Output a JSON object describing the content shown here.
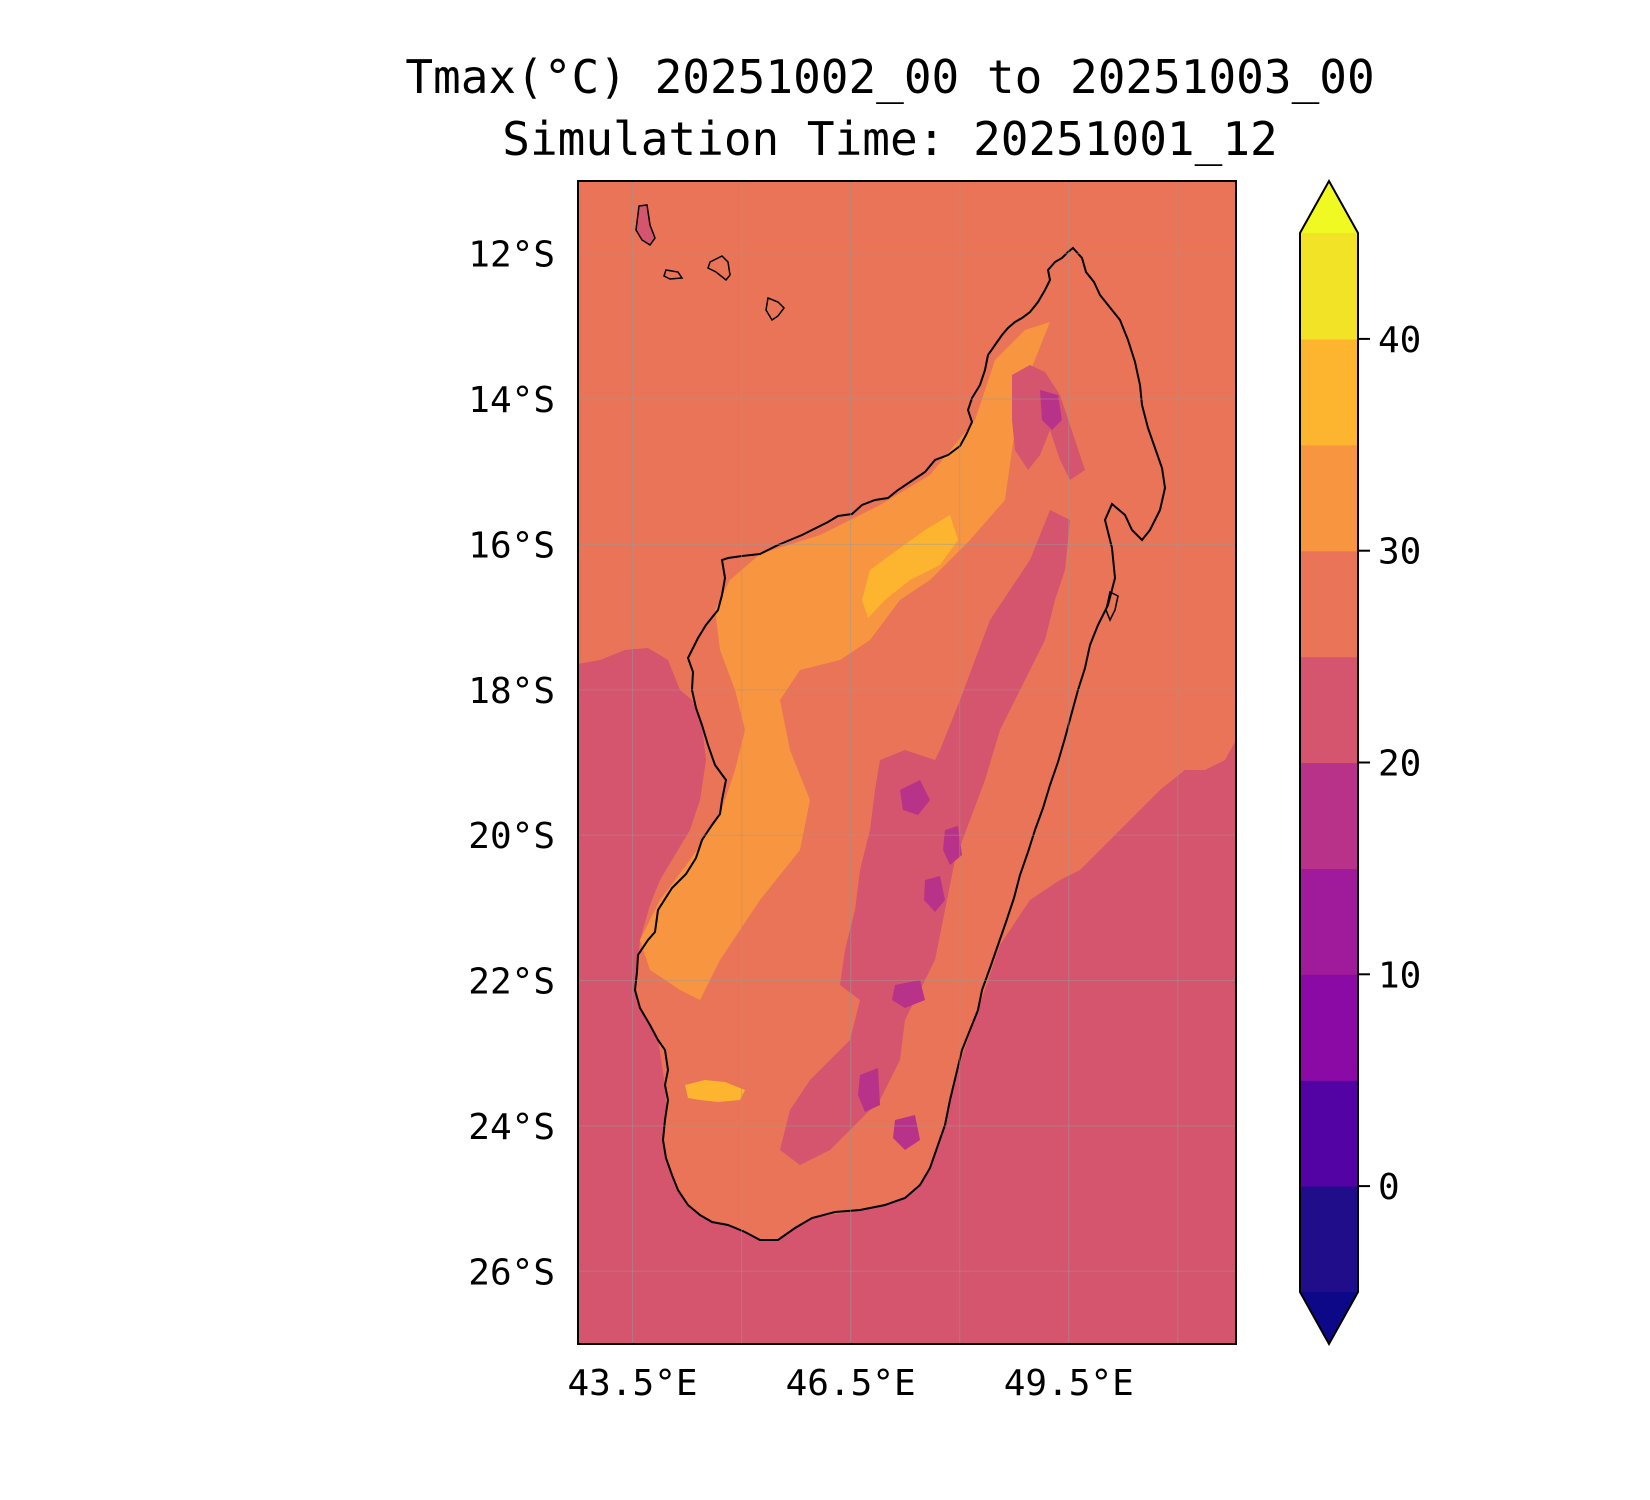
{
  "title_line1": "Tmax(°C) 20251002_00 to 20251003_00",
  "title_line2": "Simulation Time: 20251001_12",
  "chart_data": {
    "type": "heatmap",
    "variable": "Tmax(°C)",
    "valid_period": "20251002_00 to 20251003_00",
    "simulation_time": "20251001_12",
    "lon_range": [
      42.75,
      51.8
    ],
    "lat_range": [
      -27.0,
      -11.0
    ],
    "lon_ticks": [
      {
        "value": 43.5,
        "label": "43.5°E"
      },
      {
        "value": 46.5,
        "label": "46.5°E"
      },
      {
        "value": 49.5,
        "label": "49.5°E"
      }
    ],
    "lat_ticks": [
      {
        "value": -12,
        "label": "12°S"
      },
      {
        "value": -14,
        "label": "14°S"
      },
      {
        "value": -16,
        "label": "16°S"
      },
      {
        "value": -18,
        "label": "18°S"
      },
      {
        "value": -20,
        "label": "20°S"
      },
      {
        "value": -22,
        "label": "22°S"
      },
      {
        "value": -24,
        "label": "24°S"
      },
      {
        "value": -26,
        "label": "26°S"
      }
    ],
    "grid": true,
    "colorbar": {
      "levels": [
        -5,
        0,
        5,
        10,
        15,
        20,
        25,
        30,
        35,
        40,
        45
      ],
      "colors": [
        "#1f0d8a",
        "#5302a3",
        "#8b0aa5",
        "#a01a9c",
        "#b83289",
        "#d5546e",
        "#ea7457",
        "#f89540",
        "#fdb42f",
        "#f3e326"
      ],
      "under_color": "#0d0887",
      "over_color": "#f0f921",
      "tick_values": [
        0,
        10,
        20,
        30,
        40
      ],
      "tick_labels": [
        "0",
        "10",
        "20",
        "30",
        "40"
      ],
      "extend": "both"
    }
  }
}
